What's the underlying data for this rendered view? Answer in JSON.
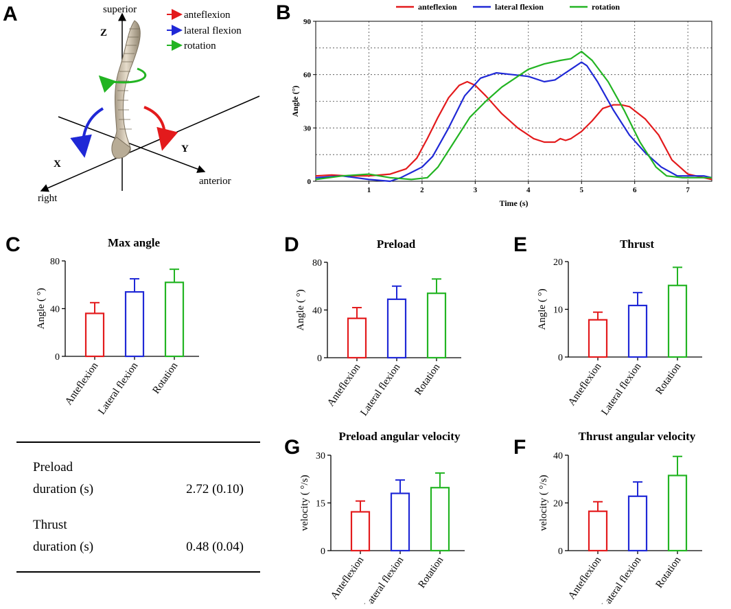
{
  "panels": {
    "A": "A",
    "B": "B",
    "C": "C",
    "D": "D",
    "E": "E",
    "G": "G",
    "F": "F"
  },
  "diagram": {
    "labels": {
      "superior": "superior",
      "z": "Z",
      "x": "X",
      "y": "Y",
      "anterior": "anterior",
      "right": "right"
    },
    "legend": [
      {
        "label": "anteflexion",
        "color": "#e31a1c"
      },
      {
        "label": "lateral flexion",
        "color": "#1f28d6"
      },
      {
        "label": "rotation",
        "color": "#22b422"
      }
    ]
  },
  "colors": {
    "anteflexion": "#e31a1c",
    "lateral": "#1f28d6",
    "rotation": "#22b422"
  },
  "table": {
    "rows": [
      {
        "label1": "Preload",
        "label2": "duration (s)",
        "value": "2.72 (0.10)"
      },
      {
        "label1": "Thrust",
        "label2": "duration (s)",
        "value": "0.48 (0.04)"
      }
    ]
  },
  "chart_data": [
    {
      "id": "B",
      "type": "line",
      "title": "",
      "xlabel": "Time (s)",
      "ylabel": "Angle (°)",
      "xlim": [
        0,
        7.45
      ],
      "ylim": [
        0,
        90
      ],
      "xticks": [
        1,
        2,
        3,
        4,
        5,
        6,
        7
      ],
      "yticks": [
        0,
        30,
        60,
        90
      ],
      "grid": "dashed",
      "legend": "top",
      "series": [
        {
          "name": "anteflexion",
          "color": "#e31a1c",
          "x": [
            0,
            0.3,
            0.6,
            1.0,
            1.4,
            1.7,
            1.9,
            2.1,
            2.3,
            2.5,
            2.7,
            2.85,
            3.0,
            3.2,
            3.5,
            3.8,
            4.1,
            4.3,
            4.5,
            4.6,
            4.7,
            4.8,
            5.0,
            5.2,
            5.4,
            5.6,
            5.75,
            5.9,
            6.2,
            6.45,
            6.7,
            7.0,
            7.3,
            7.45
          ],
          "y": [
            3,
            3.5,
            3,
            3,
            4,
            7,
            13,
            24,
            36,
            47,
            54,
            56,
            54,
            48,
            38,
            30,
            24,
            22,
            22,
            24,
            23,
            24,
            28,
            34,
            41,
            43,
            43,
            42,
            35,
            26,
            12,
            4,
            2,
            1
          ]
        },
        {
          "name": "lateral flexion",
          "color": "#1f28d6",
          "x": [
            0,
            0.5,
            1.0,
            1.4,
            1.6,
            1.8,
            2.0,
            2.2,
            2.5,
            2.8,
            3.1,
            3.4,
            3.7,
            4.0,
            4.3,
            4.5,
            4.7,
            4.85,
            5.0,
            5.1,
            5.3,
            5.6,
            5.9,
            6.2,
            6.5,
            6.8,
            7.1,
            7.3,
            7.45
          ],
          "y": [
            2,
            3,
            1,
            0,
            2,
            5,
            8,
            14,
            30,
            48,
            58,
            61,
            60,
            59,
            56,
            57,
            61,
            64,
            67,
            65,
            56,
            40,
            26,
            16,
            8,
            3,
            3,
            3,
            2
          ]
        },
        {
          "name": "rotation",
          "color": "#22b422",
          "x": [
            0,
            0.5,
            1.0,
            1.4,
            1.8,
            2.1,
            2.3,
            2.6,
            2.9,
            3.2,
            3.5,
            3.8,
            4.0,
            4.3,
            4.6,
            4.8,
            5.0,
            5.2,
            5.5,
            5.8,
            6.1,
            6.4,
            6.6,
            6.9,
            7.2,
            7.45
          ],
          "y": [
            1,
            3,
            4,
            2,
            1,
            2,
            8,
            22,
            36,
            45,
            53,
            59,
            63,
            66,
            68,
            69,
            73,
            68,
            56,
            40,
            22,
            8,
            3,
            2,
            2,
            2
          ]
        }
      ]
    },
    {
      "id": "C",
      "type": "bar",
      "title": "Max angle",
      "ylabel": "Angle ( °)",
      "ylim": [
        0,
        80
      ],
      "yticks": [
        0,
        40,
        80
      ],
      "categories": [
        "Anteflexion",
        "Lateral flexion",
        "Rotation"
      ],
      "values": [
        36,
        54,
        62
      ],
      "errors": [
        9,
        11,
        11
      ]
    },
    {
      "id": "D",
      "type": "bar",
      "title": "Preload",
      "ylabel": "Angle ( °)",
      "ylim": [
        0,
        80
      ],
      "yticks": [
        0,
        40,
        80
      ],
      "categories": [
        "Anteflexion",
        "Lateral flexion",
        "Rotation"
      ],
      "values": [
        33,
        49,
        54
      ],
      "errors": [
        9,
        11,
        12
      ]
    },
    {
      "id": "E",
      "type": "bar",
      "title": "Thrust",
      "ylabel": "Angle ( °)",
      "ylim": [
        0,
        20
      ],
      "yticks": [
        0,
        10,
        20
      ],
      "categories": [
        "Anteflexion",
        "Lateral flexion",
        "Rotation"
      ],
      "values": [
        7.8,
        10.8,
        15
      ],
      "errors": [
        1.6,
        2.7,
        3.8
      ]
    },
    {
      "id": "G",
      "type": "bar",
      "title": "Preload angular velocity",
      "ylabel": "velocity ( °/s)",
      "ylim": [
        0,
        30
      ],
      "yticks": [
        0,
        15,
        30
      ],
      "categories": [
        "Anteflexion",
        "Lateral flexion",
        "Rotation"
      ],
      "values": [
        12.2,
        18,
        19.8
      ],
      "errors": [
        3.4,
        4.2,
        4.6
      ]
    },
    {
      "id": "F",
      "type": "bar",
      "title": "Thrust angular velocity",
      "ylabel": "velocity ( °/s)",
      "ylim": [
        0,
        40
      ],
      "yticks": [
        0,
        20,
        40
      ],
      "categories": [
        "Anteflexion",
        "Lateral flexion",
        "Rotation"
      ],
      "values": [
        16.5,
        22.8,
        31.5
      ],
      "errors": [
        4,
        6,
        8
      ]
    }
  ]
}
